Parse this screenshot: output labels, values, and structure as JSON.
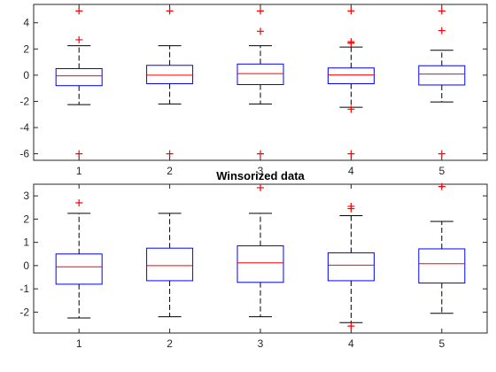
{
  "colors": {
    "axis": "#262626",
    "box": "#0000ff",
    "median": "#ff0000",
    "outlier": "#ff0000",
    "whisker": "#000000",
    "background": "#ffffff"
  },
  "chart_data": [
    {
      "type": "box",
      "title": "",
      "xlabel": "",
      "ylabel": "",
      "categories": [
        "1",
        "2",
        "3",
        "4",
        "5"
      ],
      "ylim": [
        -6.5,
        5.4
      ],
      "yticks": [
        -6,
        -4,
        -2,
        0,
        2,
        4
      ],
      "grid": false,
      "boxes": [
        {
          "q1": -0.8,
          "median": -0.05,
          "q3": 0.5,
          "whisker_low": -2.25,
          "whisker_high": 2.25,
          "outliers": [
            4.9,
            2.7,
            -6.0
          ]
        },
        {
          "q1": -0.65,
          "median": 0.0,
          "q3": 0.75,
          "whisker_low": -2.2,
          "whisker_high": 2.25,
          "outliers": [
            4.9,
            -6.0
          ]
        },
        {
          "q1": -0.72,
          "median": 0.12,
          "q3": 0.85,
          "whisker_low": -2.2,
          "whisker_high": 2.25,
          "outliers": [
            4.9,
            3.35,
            -6.0
          ]
        },
        {
          "q1": -0.65,
          "median": 0.02,
          "q3": 0.55,
          "whisker_low": -2.45,
          "whisker_high": 2.15,
          "outliers": [
            4.9,
            2.55,
            2.45,
            -2.6,
            -6.0
          ]
        },
        {
          "q1": -0.75,
          "median": 0.08,
          "q3": 0.72,
          "whisker_low": -2.05,
          "whisker_high": 1.9,
          "outliers": [
            4.9,
            3.4,
            -6.0
          ]
        }
      ]
    },
    {
      "type": "box",
      "title": "Winsorized data",
      "xlabel": "",
      "ylabel": "",
      "categories": [
        "1",
        "2",
        "3",
        "4",
        "5"
      ],
      "ylim": [
        -2.9,
        3.5
      ],
      "yticks": [
        -2,
        -1,
        0,
        1,
        2,
        3
      ],
      "grid": false,
      "boxes": [
        {
          "q1": -0.8,
          "median": -0.05,
          "q3": 0.5,
          "whisker_low": -2.25,
          "whisker_high": 2.25,
          "outliers": [
            2.7
          ]
        },
        {
          "q1": -0.65,
          "median": 0.0,
          "q3": 0.75,
          "whisker_low": -2.2,
          "whisker_high": 2.25,
          "outliers": []
        },
        {
          "q1": -0.72,
          "median": 0.12,
          "q3": 0.85,
          "whisker_low": -2.2,
          "whisker_high": 2.25,
          "outliers": [
            3.35
          ]
        },
        {
          "q1": -0.65,
          "median": 0.02,
          "q3": 0.55,
          "whisker_low": -2.45,
          "whisker_high": 2.15,
          "outliers": [
            2.55,
            2.45,
            -2.6
          ]
        },
        {
          "q1": -0.75,
          "median": 0.08,
          "q3": 0.72,
          "whisker_low": -2.05,
          "whisker_high": 1.9,
          "outliers": [
            3.4
          ]
        }
      ]
    }
  ]
}
